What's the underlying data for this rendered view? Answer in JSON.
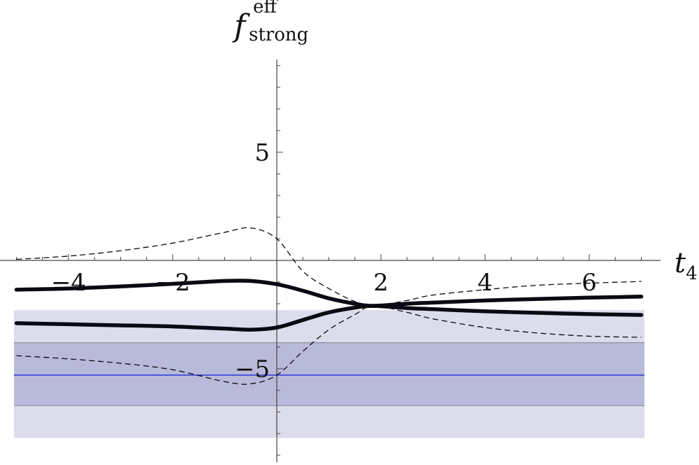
{
  "chart_data": {
    "type": "line",
    "title": "",
    "xlabel": {
      "main": "t",
      "sub": "4"
    },
    "ylabel": {
      "main": "f",
      "sup": "eff",
      "sub": "strong"
    },
    "xlim": [
      -5.15,
      7.0
    ],
    "ylim": [
      -9.2,
      9.1
    ],
    "x_ticks": [
      {
        "value": -4,
        "label": "−4"
      },
      {
        "value": -2,
        "label": "−2"
      },
      {
        "value": 2,
        "label": "2"
      },
      {
        "value": 4,
        "label": "4"
      },
      {
        "value": 6,
        "label": "6"
      }
    ],
    "y_ticks": [
      {
        "value": 5,
        "label": "5"
      },
      {
        "value": -5,
        "label": "−5"
      }
    ],
    "grid": false,
    "bands": [
      {
        "y_range": [
          -8.2,
          -2.3
        ],
        "color": "#dcdcec"
      },
      {
        "y_range": [
          -6.7,
          -3.8
        ],
        "color": "#b9b9da",
        "edge_color": "#9a9aaa"
      }
    ],
    "reference_line": {
      "y": -5.3,
      "color": "#2a3ad6"
    },
    "series": [
      {
        "style": "thick",
        "x": [
          -5.0,
          -4.0,
          -3.0,
          -2.0,
          -1.0,
          -0.5,
          0.0,
          0.5,
          1.0,
          1.5,
          1.85,
          2.5,
          3.0,
          4.0,
          5.0,
          6.0,
          7.0
        ],
        "y": [
          -1.35,
          -1.3,
          -1.2,
          -1.08,
          -0.95,
          -0.95,
          -1.1,
          -1.4,
          -1.75,
          -2.0,
          -2.1,
          -2.0,
          -1.95,
          -1.85,
          -1.78,
          -1.72,
          -1.67
        ]
      },
      {
        "style": "thick",
        "x": [
          -5.0,
          -4.0,
          -3.0,
          -2.0,
          -1.0,
          -0.5,
          0.0,
          0.5,
          1.0,
          1.5,
          1.85,
          2.5,
          3.0,
          4.0,
          5.0,
          6.0,
          7.0
        ],
        "y": [
          -2.9,
          -2.95,
          -3.0,
          -3.05,
          -3.15,
          -3.2,
          -3.1,
          -2.75,
          -2.4,
          -2.18,
          -2.1,
          -2.2,
          -2.25,
          -2.35,
          -2.42,
          -2.48,
          -2.52
        ]
      },
      {
        "style": "dashed",
        "x": [
          -5.0,
          -4.0,
          -3.0,
          -2.0,
          -1.0,
          -0.5,
          0.0,
          0.5,
          1.0,
          1.5,
          1.85,
          2.5,
          3.0,
          4.0,
          5.0,
          6.0,
          7.0
        ],
        "y": [
          0.05,
          0.2,
          0.45,
          0.8,
          1.3,
          1.5,
          1.0,
          -0.5,
          -1.3,
          -1.9,
          -2.1,
          -1.85,
          -1.6,
          -1.35,
          -1.15,
          -1.05,
          -0.97
        ]
      },
      {
        "style": "dashed",
        "x": [
          -5.0,
          -4.0,
          -3.0,
          -2.0,
          -1.0,
          -0.5,
          0.0,
          0.5,
          1.0,
          1.5,
          1.85,
          2.5,
          3.0,
          4.0,
          5.0,
          6.0,
          7.0
        ],
        "y": [
          -4.4,
          -4.55,
          -4.75,
          -5.05,
          -5.6,
          -5.7,
          -5.3,
          -4.2,
          -3.2,
          -2.5,
          -2.1,
          -2.4,
          -2.7,
          -3.1,
          -3.35,
          -3.5,
          -3.55
        ]
      }
    ]
  }
}
